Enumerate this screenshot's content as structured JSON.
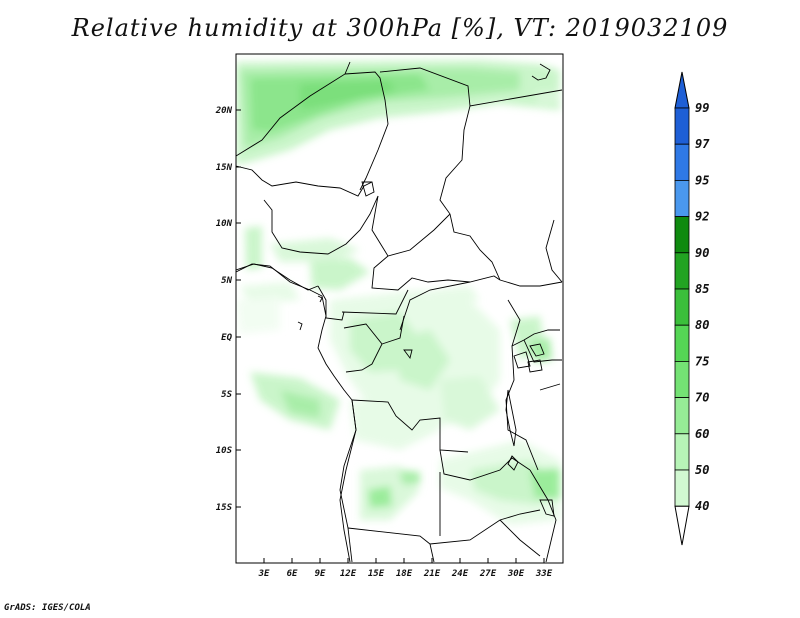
{
  "title": "Relative humidity at 300hPa [%], VT: 2019032109",
  "credit": "GrADS: IGES/COLA",
  "map": {
    "x_ticks": [
      "3E",
      "6E",
      "9E",
      "12E",
      "15E",
      "18E",
      "21E",
      "24E",
      "27E",
      "30E",
      "33E"
    ],
    "y_ticks": [
      "20N",
      "15N",
      "10N",
      "5N",
      "EQ",
      "5S",
      "10S",
      "15S"
    ],
    "lon_range": [
      0,
      35
    ],
    "lat_range": [
      -20,
      24
    ]
  },
  "colorbar": {
    "levels": [
      "99",
      "97",
      "95",
      "92",
      "90",
      "85",
      "80",
      "75",
      "70",
      "60",
      "50",
      "40"
    ],
    "colors": [
      "#1e5fd6",
      "#2f79e6",
      "#4a98ee",
      "#0f8a0f",
      "#22a322",
      "#3bbf3b",
      "#55d655",
      "#74e274",
      "#96ec96",
      "#b7f4b7",
      "#d2f8d2",
      "#ebfcea"
    ],
    "top_arrow_color": "#1e5fd6",
    "bottom_arrow_color": "#ffffff"
  },
  "chart_data": {
    "type": "map",
    "variable": "Relative humidity at 300hPa",
    "units": "%",
    "valid_time": "2019032109",
    "levels": [
      40,
      50,
      60,
      70,
      75,
      80,
      85,
      90,
      92,
      95,
      97,
      99
    ]
  }
}
